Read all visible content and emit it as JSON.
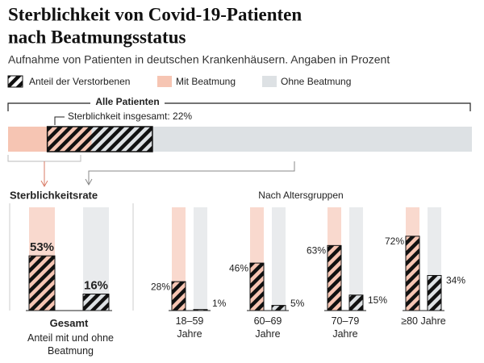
{
  "title_lines": [
    "Sterblichkeit von Covid-19-Patienten",
    "nach Beatmungsstatus"
  ],
  "subtitle": "Aufnahme von Patienten in deutschen Krankenhäusern. Angaben in Prozent",
  "legend_hatch": "Anteil der Verstorbenen",
  "overview": {
    "label": "Alle Patienten",
    "annotation": "Sterblichkeit insgesamt: 22%",
    "ventilated_share": 18
  },
  "section_left": "Sterblichkeitsrate",
  "section_right": "Nach Altersgruppen",
  "sublabel": "Anteil mit und ohne Beatmung",
  "chart_data": {
    "type": "bar",
    "categories": [
      "Gesamt",
      "18–59 Jahre",
      "60–69 Jahre",
      "70–79 Jahre",
      "≥80 Jahre"
    ],
    "ylim": [
      0,
      100
    ],
    "series": [
      {
        "name": "Mit Beatmung",
        "color": "#f6c5b3",
        "values": [
          53,
          28,
          46,
          63,
          72
        ],
        "value_labels": [
          "53%",
          "28%",
          "46%",
          "63%",
          "72%"
        ]
      },
      {
        "name": "Ohne Beatmung",
        "color": "#dde1e4",
        "values": [
          16,
          1,
          5,
          15,
          34
        ],
        "value_labels": [
          "16%",
          "1%",
          "5%",
          "15%",
          "34%"
        ]
      }
    ]
  }
}
